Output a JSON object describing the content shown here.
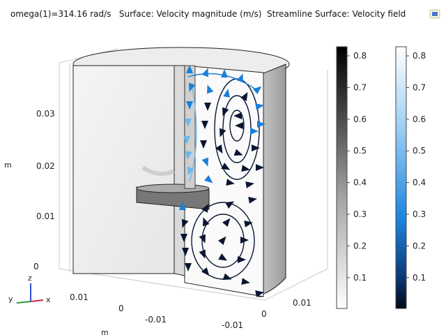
{
  "title": "omega(1)=314.16 rad/s   Surface: Velocity magnitude (m/s)  Streamline Surface: Velocity field",
  "axes": {
    "z_label": "m",
    "x_label": "m",
    "z_ticks": [
      "0.03",
      "0.02",
      "0.01",
      "0"
    ],
    "y_ticks": [
      "0.01",
      "0",
      "-0.01"
    ],
    "x_ticks": [
      "0.01",
      "0",
      "-0.01"
    ],
    "triad": {
      "z": "z",
      "y": "y",
      "x": "x"
    }
  },
  "colorbars": {
    "surface": {
      "name": "Velocity magnitude (m/s)",
      "ticks": [
        "0.8",
        "0.7",
        "0.6",
        "0.5",
        "0.4",
        "0.3",
        "0.2",
        "0.1"
      ],
      "colormap": "gray"
    },
    "streamline": {
      "name": "Velocity field",
      "ticks": [
        "0.8",
        "0.7",
        "0.6",
        "0.5",
        "0.4",
        "0.3",
        "0.2",
        "0.1"
      ],
      "colormap": "blue"
    }
  },
  "colors": {
    "arrow_light": "#6ab8f0",
    "arrow_mid": "#1a7fd8",
    "arrow_dark": "#0a1530",
    "background": "#ffffff"
  },
  "icons": {
    "corner": "graphics-export-icon"
  }
}
